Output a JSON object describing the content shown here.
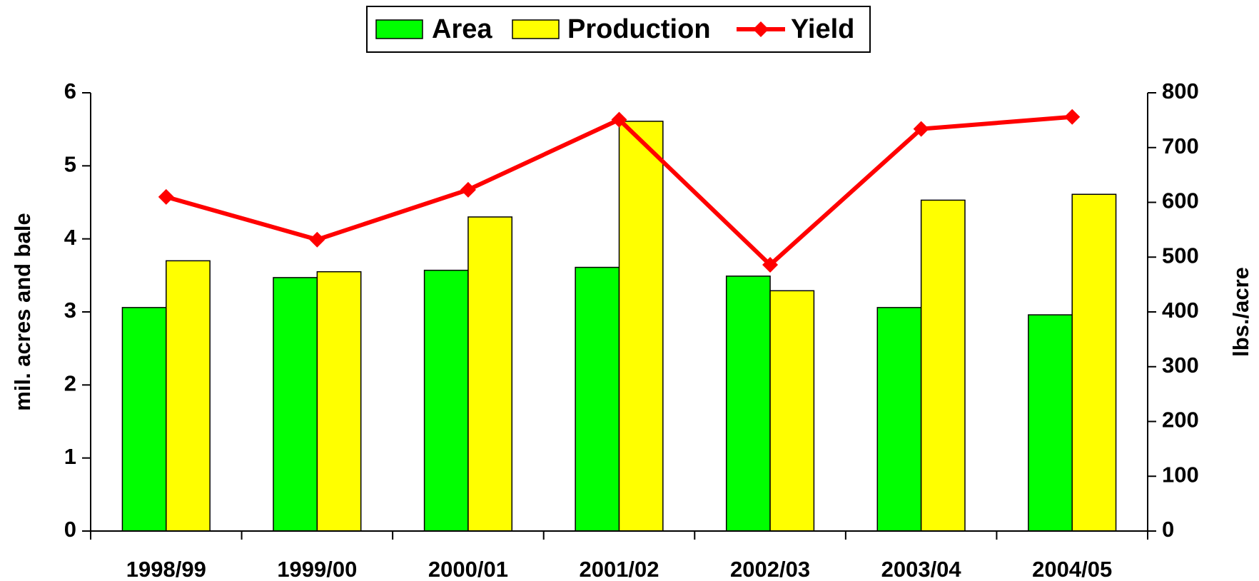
{
  "chart_data": {
    "type": "bar-line",
    "categories": [
      "1998/99",
      "1999/00",
      "2000/01",
      "2001/02",
      "2002/03",
      "2003/04",
      "2004/05"
    ],
    "y_label": "mil. acres and bale",
    "y2_label": "lbs./acre",
    "ylim": [
      0,
      6
    ],
    "yticks": [
      0,
      1,
      2,
      3,
      4,
      5,
      6
    ],
    "y2lim": [
      0,
      800
    ],
    "y2ticks": [
      0,
      100,
      200,
      300,
      400,
      500,
      600,
      700,
      800
    ],
    "series": [
      {
        "name": "Area",
        "color": "#00ff00",
        "kind": "bar",
        "values": [
          3.06,
          3.47,
          3.57,
          3.61,
          3.49,
          3.06,
          2.96
        ]
      },
      {
        "name": "Production",
        "color": "#ffff00",
        "kind": "bar",
        "values": [
          3.7,
          3.55,
          4.3,
          5.61,
          3.29,
          4.53,
          4.61
        ]
      },
      {
        "name": "Yield",
        "color": "#ff0000",
        "kind": "line",
        "axis": "y2",
        "values": [
          610,
          532,
          623,
          751,
          486,
          734,
          756
        ]
      }
    ]
  }
}
